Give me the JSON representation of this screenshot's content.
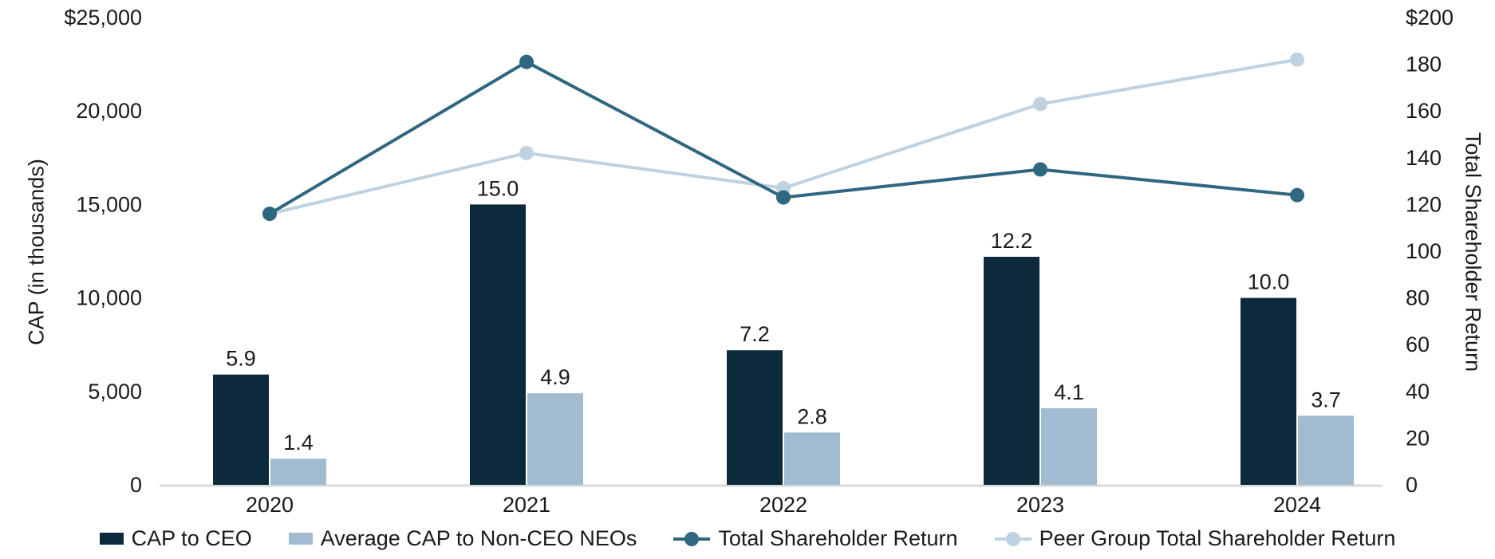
{
  "chart_data": {
    "type": "combo",
    "categories": [
      "2020",
      "2021",
      "2022",
      "2023",
      "2024"
    ],
    "bar_series": [
      {
        "name": "CAP to CEO",
        "axis": "left",
        "color": "#0d2a3c",
        "value_scale": 1000,
        "values": [
          5.9,
          15.0,
          7.2,
          12.2,
          10.0
        ],
        "labels": [
          "5.9",
          "15.0",
          "7.2",
          "12.2",
          "10.0"
        ]
      },
      {
        "name": "Average CAP to Non-CEO NEOs",
        "axis": "left",
        "color": "#a1bcd0",
        "value_scale": 1000,
        "values": [
          1.4,
          4.9,
          2.8,
          4.1,
          3.7
        ],
        "labels": [
          "1.4",
          "4.9",
          "2.8",
          "4.1",
          "3.7"
        ]
      }
    ],
    "line_series": [
      {
        "name": "Total Shareholder Return",
        "axis": "right",
        "color": "#2f6680",
        "z": 1,
        "values": [
          116,
          181,
          123,
          135,
          124
        ]
      },
      {
        "name": "Peer Group Total Shareholder Return",
        "axis": "right",
        "color": "#bfd2e1",
        "z": 0,
        "values": [
          116,
          142,
          127,
          163,
          182
        ]
      }
    ],
    "left_axis": {
      "title": "CAP (in thousands)",
      "min": 0,
      "max": 25000,
      "ticks": [
        {
          "label": "$25,000",
          "value": 25000
        },
        {
          "label": "20,000",
          "value": 20000
        },
        {
          "label": "15,000",
          "value": 15000
        },
        {
          "label": "10,000",
          "value": 10000
        },
        {
          "label": "5,000",
          "value": 5000
        },
        {
          "label": "0",
          "value": 0
        }
      ]
    },
    "right_axis": {
      "title": "Total Shareholder Return",
      "min": 0,
      "max": 200,
      "ticks": [
        {
          "label": "$200",
          "value": 200
        },
        {
          "label": "180",
          "value": 180
        },
        {
          "label": "160",
          "value": 160
        },
        {
          "label": "140",
          "value": 140
        },
        {
          "label": "120",
          "value": 120
        },
        {
          "label": "100",
          "value": 100
        },
        {
          "label": "80",
          "value": 80
        },
        {
          "label": "60",
          "value": 60
        },
        {
          "label": "40",
          "value": 40
        },
        {
          "label": "20",
          "value": 20
        },
        {
          "label": "0",
          "value": 0
        }
      ]
    },
    "legend": [
      {
        "label": "CAP to CEO",
        "marker": "rect",
        "color": "#0d2a3c"
      },
      {
        "label": "Average CAP to Non-CEO NEOs",
        "marker": "rect",
        "color": "#a1bcd0"
      },
      {
        "label": "Total Shareholder Return",
        "marker": "line-dot",
        "color": "#2f6680"
      },
      {
        "label": "Peer Group Total Shareholder Return",
        "marker": "line-dot",
        "color": "#bfd2e1"
      }
    ],
    "colors": {
      "text": "#1a1a1a",
      "baseline": "#d9d9d9"
    },
    "grid": false,
    "legend_position": "bottom"
  }
}
